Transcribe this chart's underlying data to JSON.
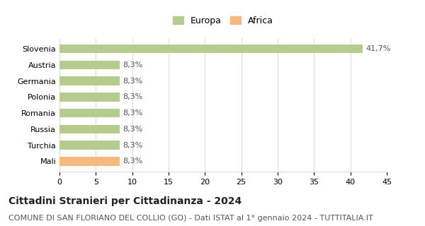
{
  "categories": [
    "Slovenia",
    "Austria",
    "Germania",
    "Polonia",
    "Romania",
    "Russia",
    "Turchia",
    "Mali"
  ],
  "values": [
    41.7,
    8.3,
    8.3,
    8.3,
    8.3,
    8.3,
    8.3,
    8.3
  ],
  "labels": [
    "41,7%",
    "8,3%",
    "8,3%",
    "8,3%",
    "8,3%",
    "8,3%",
    "8,3%",
    "8,3%"
  ],
  "colors": [
    "#b5cc8e",
    "#b5cc8e",
    "#b5cc8e",
    "#b5cc8e",
    "#b5cc8e",
    "#b5cc8e",
    "#b5cc8e",
    "#f5b97f"
  ],
  "legend_labels": [
    "Europa",
    "Africa"
  ],
  "legend_colors": [
    "#b5cc8e",
    "#f5b97f"
  ],
  "xlim": [
    0,
    45
  ],
  "xticks": [
    0,
    5,
    10,
    15,
    20,
    25,
    30,
    35,
    40,
    45
  ],
  "title": "Cittadini Stranieri per Cittadinanza - 2024",
  "subtitle": "COMUNE DI SAN FLORIANO DEL COLLIO (GO) - Dati ISTAT al 1° gennaio 2024 - TUTTITALIA.IT",
  "background_color": "#ffffff",
  "grid_color": "#dddddd",
  "bar_height": 0.55,
  "title_fontsize": 10,
  "subtitle_fontsize": 8,
  "label_fontsize": 8,
  "tick_fontsize": 8,
  "ytick_fontsize": 8
}
